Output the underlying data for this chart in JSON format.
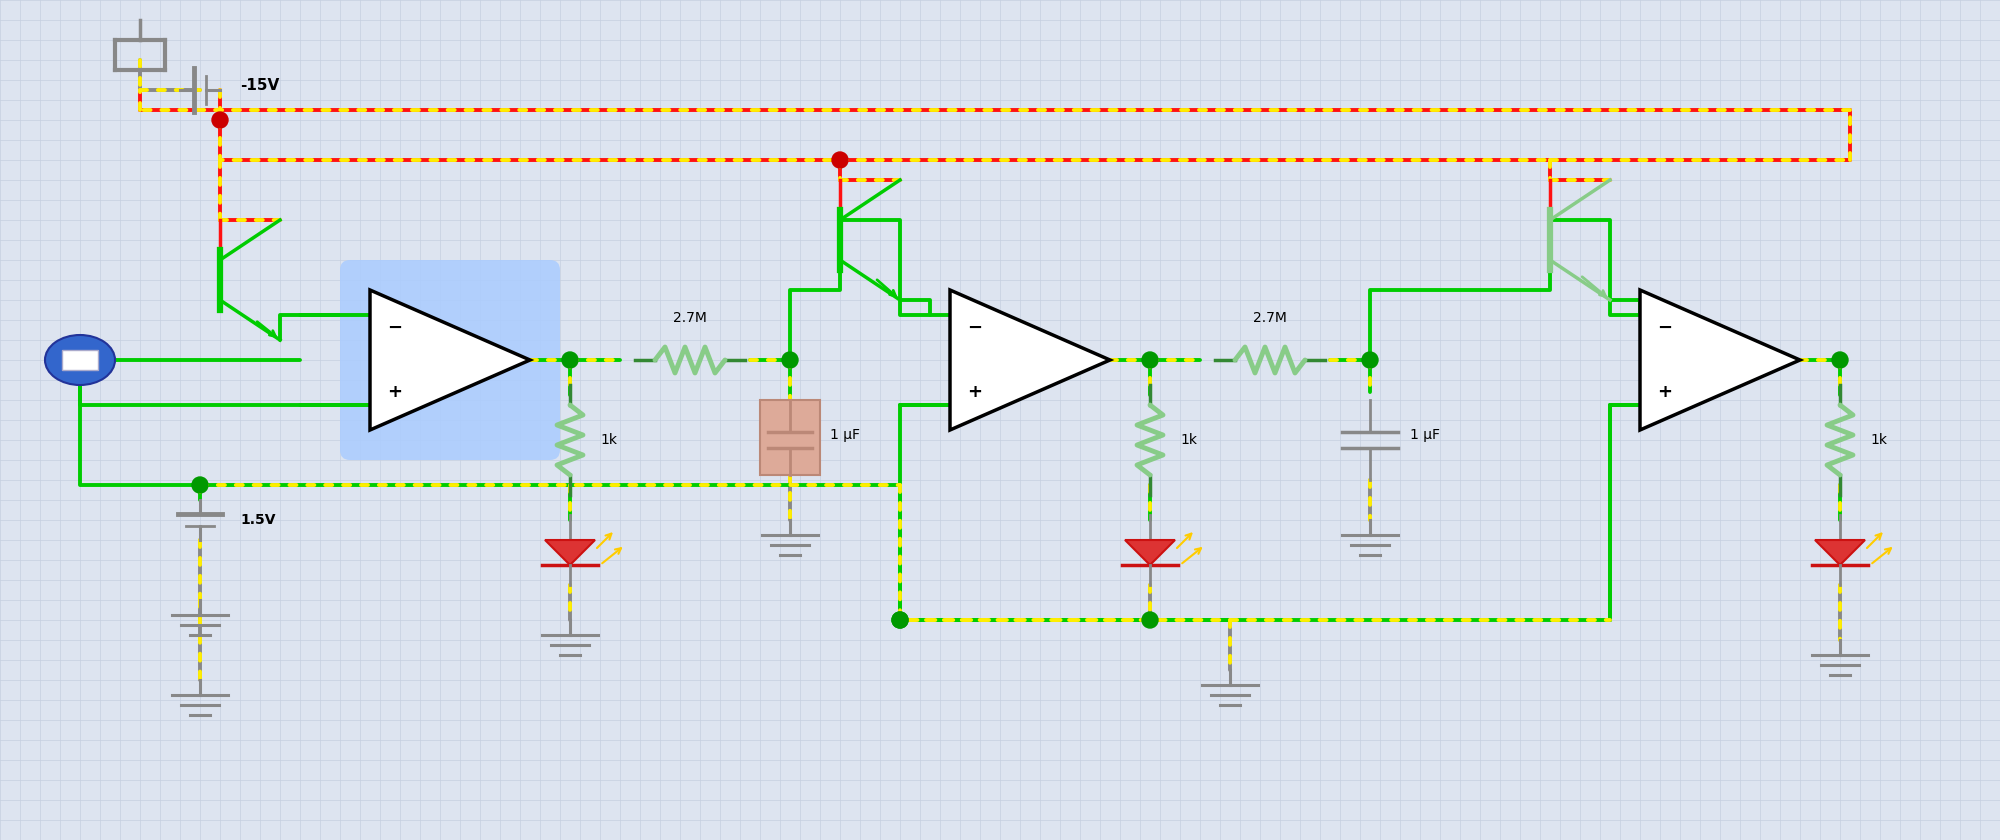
{
  "bg_color": "#dde4f0",
  "grid_color": "#c5cfe0",
  "wire_green": "#00cc00",
  "wire_yellow": "#ffee00",
  "wire_red": "#ff1111",
  "wire_gray": "#888888",
  "wire_dark_gray": "#666666",
  "node_green": "#009900",
  "node_red": "#cc0000",
  "comp1_bg": "#aaccff",
  "resistor_body": "#cccc88",
  "resistor_edge": "#888855",
  "resistor_green_body": "#88cc88",
  "resistor_green_edge": "#338833",
  "capacitor_fill": "#ddaa99",
  "capacitor_edge": "#bb8877",
  "capacitor2_fill": "#cccccc",
  "capacitor2_edge": "#888888",
  "led_red": "#cc1111",
  "led_fill": "#dd3333",
  "led_yellow": "#ffcc00",
  "blue_connector": "#3355bb",
  "transistor_green": "#22aa22",
  "transistor_red": "#dd2222",
  "label_neg15v": "-15V",
  "label_pos15v": "1.5V",
  "label_27m": "2.7M",
  "label_1k": "1k",
  "label_1uf": "1 μF"
}
